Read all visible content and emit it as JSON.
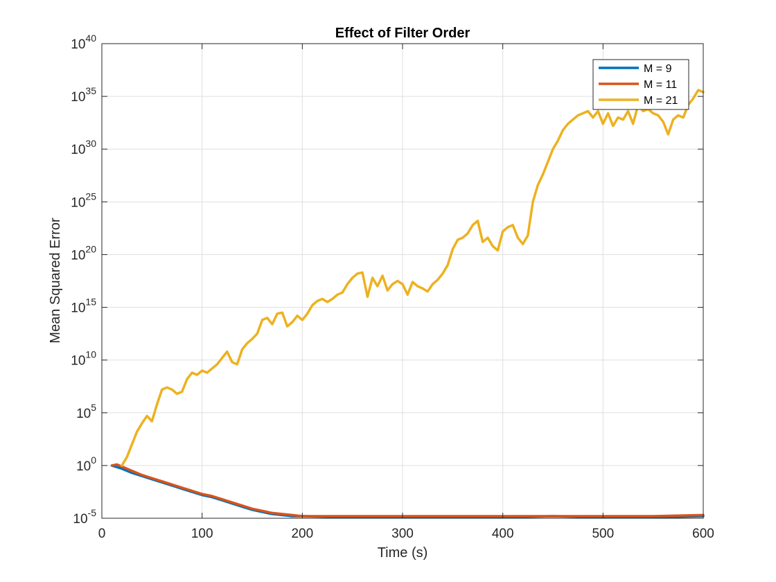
{
  "chart_data": {
    "type": "line",
    "title": "Effect of Filter Order",
    "xlabel": "Time (s)",
    "ylabel": "Mean Squared Error",
    "xlim": [
      0,
      600
    ],
    "ylim_exponents": [
      -5,
      40
    ],
    "yscale": "log",
    "grid": true,
    "legend_position": "top-right",
    "xticks": [
      0,
      100,
      200,
      300,
      400,
      500,
      600
    ],
    "xtick_labels": [
      "0",
      "100",
      "200",
      "300",
      "400",
      "500",
      "600"
    ],
    "yticks": [
      {
        "base": "10",
        "exp": "-5"
      },
      {
        "base": "10",
        "exp": "0"
      },
      {
        "base": "10",
        "exp": "5"
      },
      {
        "base": "10",
        "exp": "10"
      },
      {
        "base": "10",
        "exp": "15"
      },
      {
        "base": "10",
        "exp": "20"
      },
      {
        "base": "10",
        "exp": "25"
      },
      {
        "base": "10",
        "exp": "30"
      },
      {
        "base": "10",
        "exp": "35"
      },
      {
        "base": "10",
        "exp": "40"
      }
    ],
    "series": [
      {
        "name": "M = 9",
        "color": "#0072BD",
        "x": [
          10,
          20,
          30,
          40,
          50,
          60,
          70,
          80,
          90,
          100,
          110,
          120,
          130,
          140,
          150,
          160,
          170,
          180,
          190,
          200,
          250,
          300,
          350,
          400,
          450,
          500,
          550,
          600
        ],
        "log10_y": [
          0,
          -0.3,
          -0.7,
          -1.0,
          -1.3,
          -1.6,
          -1.9,
          -2.2,
          -2.5,
          -2.8,
          -3.0,
          -3.3,
          -3.6,
          -3.9,
          -4.2,
          -4.4,
          -4.6,
          -4.7,
          -4.8,
          -4.8,
          -4.9,
          -4.9,
          -4.9,
          -4.9,
          -4.8,
          -4.9,
          -4.9,
          -4.8
        ]
      },
      {
        "name": "M = 11",
        "color": "#D95319",
        "x": [
          10,
          15,
          20,
          30,
          40,
          50,
          60,
          70,
          80,
          90,
          100,
          110,
          120,
          130,
          140,
          150,
          160,
          170,
          180,
          190,
          200,
          250,
          300,
          350,
          400,
          450,
          500,
          550,
          600
        ],
        "log10_y": [
          0,
          0.1,
          -0.1,
          -0.5,
          -0.9,
          -1.2,
          -1.5,
          -1.8,
          -2.1,
          -2.4,
          -2.7,
          -2.9,
          -3.2,
          -3.5,
          -3.8,
          -4.1,
          -4.3,
          -4.5,
          -4.6,
          -4.7,
          -4.8,
          -4.8,
          -4.8,
          -4.8,
          -4.8,
          -4.8,
          -4.8,
          -4.8,
          -4.7
        ]
      },
      {
        "name": "M = 21",
        "color": "#EDB120",
        "x": [
          20,
          25,
          30,
          35,
          40,
          45,
          50,
          55,
          60,
          65,
          70,
          75,
          80,
          85,
          90,
          95,
          100,
          105,
          110,
          115,
          120,
          125,
          130,
          135,
          140,
          145,
          150,
          155,
          160,
          165,
          170,
          175,
          180,
          185,
          190,
          195,
          200,
          205,
          210,
          215,
          220,
          225,
          230,
          235,
          240,
          245,
          250,
          255,
          260,
          265,
          270,
          275,
          280,
          285,
          290,
          295,
          300,
          305,
          310,
          315,
          320,
          325,
          330,
          335,
          340,
          345,
          350,
          355,
          360,
          365,
          370,
          375,
          380,
          385,
          390,
          395,
          400,
          405,
          410,
          415,
          420,
          425,
          430,
          435,
          440,
          445,
          450,
          455,
          460,
          465,
          470,
          475,
          480,
          485,
          490,
          495,
          500,
          505,
          510,
          515,
          520,
          525,
          530,
          535,
          540,
          545,
          550,
          555,
          560,
          565,
          570,
          575,
          580,
          585,
          590,
          595,
          600
        ],
        "log10_y": [
          0,
          0.8,
          2.0,
          3.2,
          4.0,
          4.7,
          4.2,
          5.8,
          7.2,
          7.4,
          7.2,
          6.8,
          7.0,
          8.2,
          8.8,
          8.6,
          9.0,
          8.8,
          9.2,
          9.6,
          10.2,
          10.8,
          9.8,
          9.6,
          11.0,
          11.6,
          12.0,
          12.5,
          13.8,
          14.0,
          13.4,
          14.4,
          14.5,
          13.2,
          13.6,
          14.2,
          13.8,
          14.4,
          15.2,
          15.6,
          15.8,
          15.5,
          15.8,
          16.2,
          16.4,
          17.2,
          17.8,
          18.2,
          18.3,
          16.0,
          17.8,
          17.0,
          18.0,
          16.6,
          17.2,
          17.5,
          17.2,
          16.2,
          17.4,
          17.0,
          16.8,
          16.5,
          17.2,
          17.6,
          18.2,
          19.0,
          20.5,
          21.4,
          21.6,
          22.0,
          22.8,
          23.2,
          21.2,
          21.6,
          20.8,
          20.4,
          22.2,
          22.6,
          22.8,
          21.6,
          21.0,
          21.8,
          25.0,
          26.6,
          27.6,
          28.8,
          30.0,
          30.8,
          31.8,
          32.4,
          32.8,
          33.2,
          33.4,
          33.6,
          33.0,
          33.6,
          32.4,
          33.4,
          32.2,
          33.0,
          32.8,
          33.6,
          32.4,
          34.2,
          33.6,
          33.8,
          33.4,
          33.2,
          32.6,
          31.4,
          32.8,
          33.2,
          33.0,
          34.2,
          34.8,
          35.6,
          35.4,
          35.8
        ]
      }
    ]
  }
}
